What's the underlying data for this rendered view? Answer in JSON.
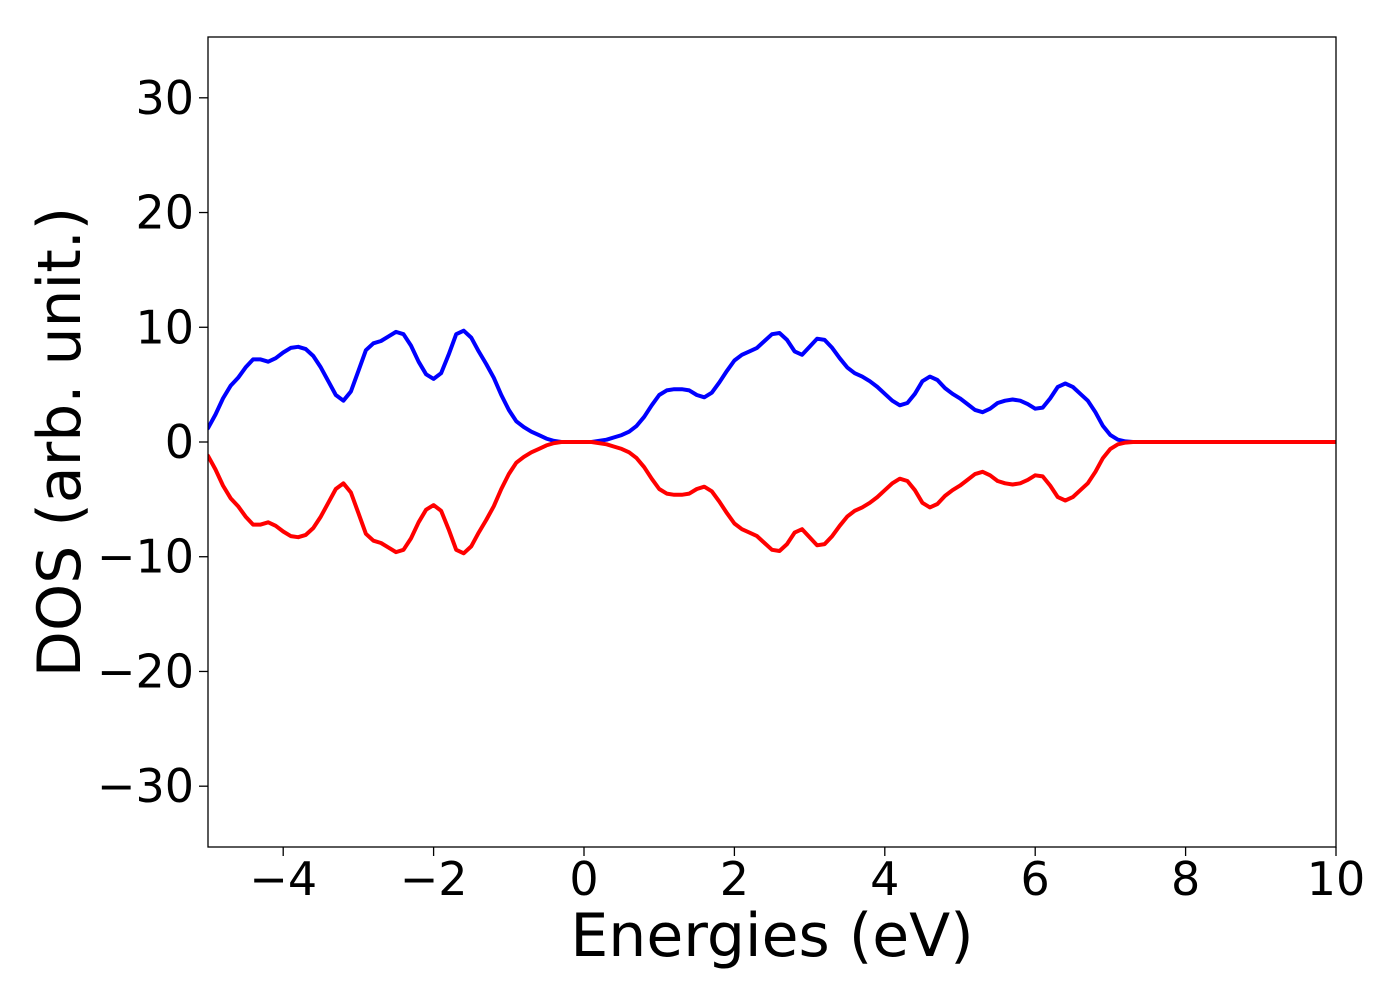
{
  "chart_data": {
    "type": "line",
    "title": "",
    "xlabel": "Energies (eV)",
    "ylabel": "DOS (arb. unit.)",
    "xlim": [
      -5,
      10
    ],
    "ylim": [
      -35.3,
      35.3
    ],
    "xticks": [
      -4,
      -2,
      0,
      2,
      4,
      6,
      8,
      10
    ],
    "xtick_labels": [
      "−4",
      "−2",
      "0",
      "2",
      "4",
      "6",
      "8",
      "10"
    ],
    "yticks": [
      30,
      20,
      10,
      0,
      -10,
      -20,
      -30
    ],
    "ytick_labels": [
      "30",
      "20",
      "10",
      "0",
      "−10",
      "−20",
      "−30"
    ],
    "grid": false,
    "legend": false,
    "x": [
      -5.0,
      -4.9,
      -4.8,
      -4.7,
      -4.6,
      -4.5,
      -4.4,
      -4.3,
      -4.2,
      -4.1,
      -4.0,
      -3.9,
      -3.8,
      -3.7,
      -3.6,
      -3.5,
      -3.4,
      -3.3,
      -3.2,
      -3.1,
      -3.0,
      -2.9,
      -2.8,
      -2.7,
      -2.6,
      -2.5,
      -2.4,
      -2.3,
      -2.2,
      -2.1,
      -2.0,
      -1.9,
      -1.8,
      -1.7,
      -1.6,
      -1.5,
      -1.4,
      -1.3,
      -1.2,
      -1.1,
      -1.0,
      -0.9,
      -0.8,
      -0.7,
      -0.6,
      -0.5,
      -0.4,
      -0.3,
      -0.2,
      -0.1,
      0.0,
      0.1,
      0.2,
      0.3,
      0.4,
      0.5,
      0.6,
      0.7,
      0.8,
      0.9,
      1.0,
      1.1,
      1.2,
      1.3,
      1.4,
      1.5,
      1.6,
      1.7,
      1.8,
      1.9,
      2.0,
      2.1,
      2.2,
      2.3,
      2.4,
      2.5,
      2.6,
      2.7,
      2.8,
      2.9,
      3.0,
      3.1,
      3.2,
      3.3,
      3.4,
      3.5,
      3.6,
      3.7,
      3.8,
      3.9,
      4.0,
      4.1,
      4.2,
      4.3,
      4.4,
      4.5,
      4.6,
      4.7,
      4.8,
      4.9,
      5.0,
      5.1,
      5.2,
      5.3,
      5.4,
      5.5,
      5.6,
      5.7,
      5.8,
      5.9,
      6.0,
      6.1,
      6.2,
      6.3,
      6.4,
      6.5,
      6.6,
      6.7,
      6.8,
      6.9,
      7.0,
      7.1,
      7.2,
      7.3,
      7.5,
      8.0,
      9.0,
      10.0
    ],
    "series": [
      {
        "color": "#0000ff",
        "values": [
          1.2,
          2.4,
          3.8,
          4.9,
          5.6,
          6.5,
          7.2,
          7.2,
          7.0,
          7.3,
          7.8,
          8.2,
          8.3,
          8.1,
          7.5,
          6.5,
          5.3,
          4.1,
          3.6,
          4.4,
          6.2,
          8.0,
          8.6,
          8.8,
          9.2,
          9.6,
          9.4,
          8.4,
          7.0,
          5.9,
          5.5,
          6.0,
          7.6,
          9.4,
          9.7,
          9.1,
          7.9,
          6.8,
          5.6,
          4.1,
          2.8,
          1.8,
          1.3,
          0.9,
          0.6,
          0.3,
          0.1,
          0.0,
          0.0,
          0.0,
          0.0,
          0.0,
          0.1,
          0.2,
          0.4,
          0.6,
          0.9,
          1.4,
          2.2,
          3.2,
          4.1,
          4.5,
          4.6,
          4.6,
          4.5,
          4.1,
          3.9,
          4.3,
          5.2,
          6.2,
          7.1,
          7.6,
          7.9,
          8.2,
          8.8,
          9.4,
          9.5,
          8.9,
          7.9,
          7.6,
          8.3,
          9.0,
          8.9,
          8.2,
          7.3,
          6.5,
          6.0,
          5.7,
          5.3,
          4.8,
          4.2,
          3.6,
          3.2,
          3.4,
          4.2,
          5.3,
          5.7,
          5.4,
          4.7,
          4.2,
          3.8,
          3.3,
          2.8,
          2.6,
          2.9,
          3.4,
          3.6,
          3.7,
          3.6,
          3.3,
          2.9,
          3.0,
          3.8,
          4.8,
          5.1,
          4.8,
          4.2,
          3.6,
          2.6,
          1.4,
          0.6,
          0.2,
          0.05,
          0.0,
          0.0,
          0.0,
          0.0,
          0.0
        ]
      },
      {
        "color": "#ff0000",
        "values": [
          -1.2,
          -2.4,
          -3.8,
          -4.9,
          -5.6,
          -6.5,
          -7.2,
          -7.2,
          -7.0,
          -7.3,
          -7.8,
          -8.2,
          -8.3,
          -8.1,
          -7.5,
          -6.5,
          -5.3,
          -4.1,
          -3.6,
          -4.4,
          -6.2,
          -8.0,
          -8.6,
          -8.8,
          -9.2,
          -9.6,
          -9.4,
          -8.4,
          -7.0,
          -5.9,
          -5.5,
          -6.0,
          -7.6,
          -9.4,
          -9.7,
          -9.1,
          -7.9,
          -6.8,
          -5.6,
          -4.1,
          -2.8,
          -1.8,
          -1.3,
          -0.9,
          -0.6,
          -0.3,
          -0.1,
          0.0,
          0.0,
          0.0,
          0.0,
          0.0,
          -0.1,
          -0.2,
          -0.4,
          -0.6,
          -0.9,
          -1.4,
          -2.2,
          -3.2,
          -4.1,
          -4.5,
          -4.6,
          -4.6,
          -4.5,
          -4.1,
          -3.9,
          -4.3,
          -5.2,
          -6.2,
          -7.1,
          -7.6,
          -7.9,
          -8.2,
          -8.8,
          -9.4,
          -9.5,
          -8.9,
          -7.9,
          -7.6,
          -8.3,
          -9.0,
          -8.9,
          -8.2,
          -7.3,
          -6.5,
          -6.0,
          -5.7,
          -5.3,
          -4.8,
          -4.2,
          -3.6,
          -3.2,
          -3.4,
          -4.2,
          -5.3,
          -5.7,
          -5.4,
          -4.7,
          -4.2,
          -3.8,
          -3.3,
          -2.8,
          -2.6,
          -2.9,
          -3.4,
          -3.6,
          -3.7,
          -3.6,
          -3.3,
          -2.9,
          -3.0,
          -3.8,
          -4.8,
          -5.1,
          -4.8,
          -4.2,
          -3.6,
          -2.6,
          -1.4,
          -0.6,
          -0.2,
          -0.05,
          0.0,
          0.0,
          0.0,
          0.0,
          0.0
        ]
      }
    ]
  }
}
